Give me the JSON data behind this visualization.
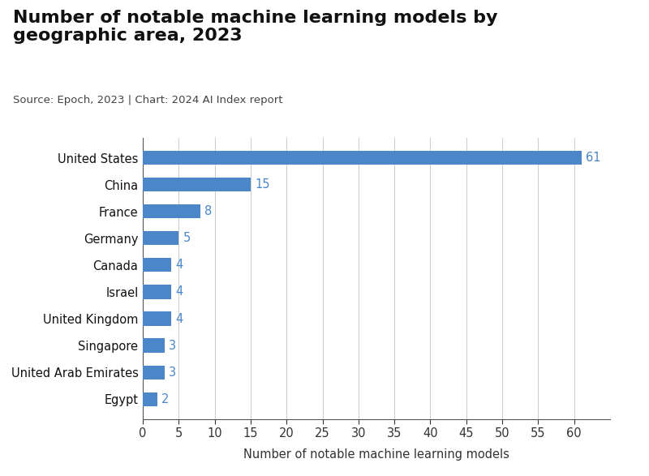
{
  "title": "Number of notable machine learning models by\ngeographic area, 2023",
  "subtitle": "Source: Epoch, 2023 | Chart: 2024 AI Index report",
  "xlabel": "Number of notable machine learning models",
  "categories": [
    "Egypt",
    "United Arab Emirates",
    "Singapore",
    "United Kingdom",
    "Israel",
    "Canada",
    "Germany",
    "France",
    "China",
    "United States"
  ],
  "values": [
    2,
    3,
    3,
    4,
    4,
    4,
    5,
    8,
    15,
    61
  ],
  "bar_color": "#4a86c8",
  "label_color": "#4a86c8",
  "background_color": "#ffffff",
  "xlim": [
    0,
    65
  ],
  "xticks": [
    0,
    5,
    10,
    15,
    20,
    25,
    30,
    35,
    40,
    45,
    50,
    55,
    60
  ],
  "title_fontsize": 16,
  "subtitle_fontsize": 9.5,
  "xlabel_fontsize": 10.5,
  "tick_fontsize": 10.5,
  "label_fontsize": 10.5,
  "bar_height": 0.52,
  "grid_color": "#cccccc"
}
